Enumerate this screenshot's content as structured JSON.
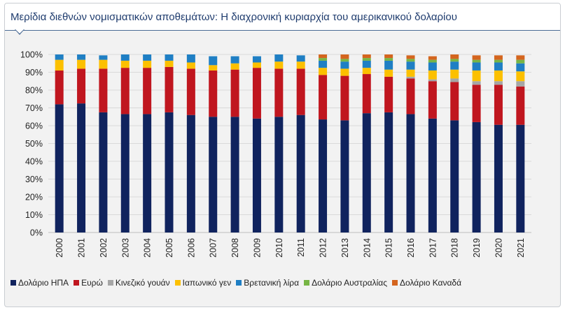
{
  "chart_data": {
    "type": "bar",
    "stacked": true,
    "title": "Μερίδια διεθνών νομισματικών αποθεμάτων: Η διαχρονική κυριαρχία του αμερικανικού δολαρίου",
    "xlabel": "",
    "ylabel": "",
    "ylim": [
      0,
      100
    ],
    "yticks": [
      "0%",
      "10%",
      "20%",
      "30%",
      "40%",
      "50%",
      "60%",
      "70%",
      "80%",
      "90%",
      "100%"
    ],
    "grid": true,
    "legend_position": "bottom",
    "categories": [
      "2000",
      "2001",
      "2002",
      "2003",
      "2004",
      "2005",
      "2006",
      "2007",
      "2008",
      "2009",
      "2010",
      "2011",
      "2012",
      "2013",
      "2014",
      "2015",
      "2016",
      "2017",
      "2018",
      "2019",
      "2020",
      "2021"
    ],
    "series": [
      {
        "name": "Δολάριο ΗΠΑ",
        "color": "#10235e",
        "values": [
          72,
          72.5,
          67.5,
          66.5,
          66.5,
          67.5,
          66,
          65,
          65,
          64,
          65,
          66,
          63.5,
          63,
          67,
          67.5,
          66.5,
          64,
          63,
          62,
          60.5,
          60.5
        ]
      },
      {
        "name": "Ευρώ",
        "color": "#c0161f",
        "values": [
          19,
          19.5,
          24.5,
          26,
          26,
          25.5,
          26,
          26,
          26.5,
          28.5,
          27,
          26,
          25,
          25,
          22,
          20,
          20,
          21,
          21.5,
          21,
          22.5,
          21.5
        ]
      },
      {
        "name": "Κινεζικό γουάν",
        "color": "#a6a6a6",
        "values": [
          0,
          0,
          0,
          0,
          0,
          0,
          0,
          0,
          0,
          0,
          0,
          0,
          0,
          0,
          0,
          0,
          1,
          1,
          2,
          2,
          2,
          3
        ]
      },
      {
        "name": "Ιαπωνικό γεν",
        "color": "#fcc000",
        "values": [
          6,
          5,
          5,
          4,
          4,
          3.5,
          3.5,
          3,
          3.5,
          3,
          4,
          4,
          4,
          4,
          3.5,
          4,
          4,
          5,
          5,
          6,
          6,
          5.5
        ]
      },
      {
        "name": "Βρετανική λίρα",
        "color": "#1f7fc4",
        "values": [
          3,
          3,
          2.5,
          3.5,
          3.5,
          3.5,
          4.5,
          5,
          4,
          3.5,
          4,
          3.5,
          4,
          4,
          4,
          5,
          4.5,
          4.5,
          4.5,
          4.5,
          4.5,
          4.5
        ]
      },
      {
        "name": "Δολάριο Αυστραλίας",
        "color": "#77b545",
        "values": [
          0,
          0,
          0,
          0,
          0,
          0,
          0,
          0,
          0,
          0,
          0,
          0,
          1.5,
          1.5,
          1.5,
          1.5,
          1.5,
          1.5,
          1.5,
          1.5,
          1.5,
          2
        ]
      },
      {
        "name": "Δολάριο Καναδά",
        "color": "#d4651e",
        "values": [
          0,
          0,
          0,
          0,
          0,
          0,
          0,
          0,
          0,
          0,
          0,
          0,
          2,
          2.5,
          2,
          2,
          2,
          2,
          2.5,
          2.5,
          2.5,
          2.5
        ]
      }
    ]
  }
}
